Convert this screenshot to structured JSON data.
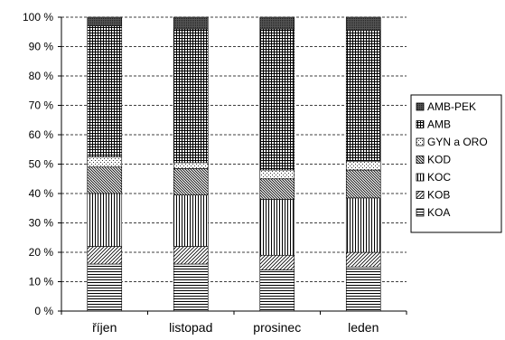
{
  "chart_data": {
    "type": "bar",
    "stacked": true,
    "percent": true,
    "categories": [
      "říjen",
      "listopad",
      "prosinec",
      "leden"
    ],
    "y_ticks": [
      "0 %",
      "10 %",
      "20 %",
      "30 %",
      "40 %",
      "50 %",
      "60 %",
      "70 %",
      "80 %",
      "90 %",
      "100 %"
    ],
    "ylim": [
      0,
      100
    ],
    "grid": "horizontal dashed",
    "legend_position": "right",
    "series": [
      {
        "name": "KOA",
        "pattern": "horizontal-lines",
        "values": [
          16,
          16,
          14,
          15
        ]
      },
      {
        "name": "KOB",
        "pattern": "diagonal-lines",
        "values": [
          6,
          6,
          5,
          5
        ]
      },
      {
        "name": "KOC",
        "pattern": "vertical-lines",
        "values": [
          18,
          17.5,
          19,
          18.5
        ]
      },
      {
        "name": "KOD",
        "pattern": "diagonal-dense",
        "values": [
          9,
          9,
          7,
          9.5
        ]
      },
      {
        "name": "GYN a ORO",
        "pattern": "dotted",
        "values": [
          3.5,
          2,
          3,
          3
        ]
      },
      {
        "name": "AMB",
        "pattern": "grid",
        "values": [
          44.5,
          45.5,
          48,
          44.5
        ]
      },
      {
        "name": "AMB-PEK",
        "pattern": "dark-fine",
        "values": [
          3,
          4,
          4,
          4.5
        ]
      }
    ],
    "legend_order": [
      "AMB-PEK",
      "AMB",
      "GYN a ORO",
      "KOD",
      "KOC",
      "KOB",
      "KOA"
    ],
    "colors": {
      "axis": "#000000",
      "grid": "#000000",
      "pattern": "#000000",
      "background": "#ffffff"
    }
  }
}
